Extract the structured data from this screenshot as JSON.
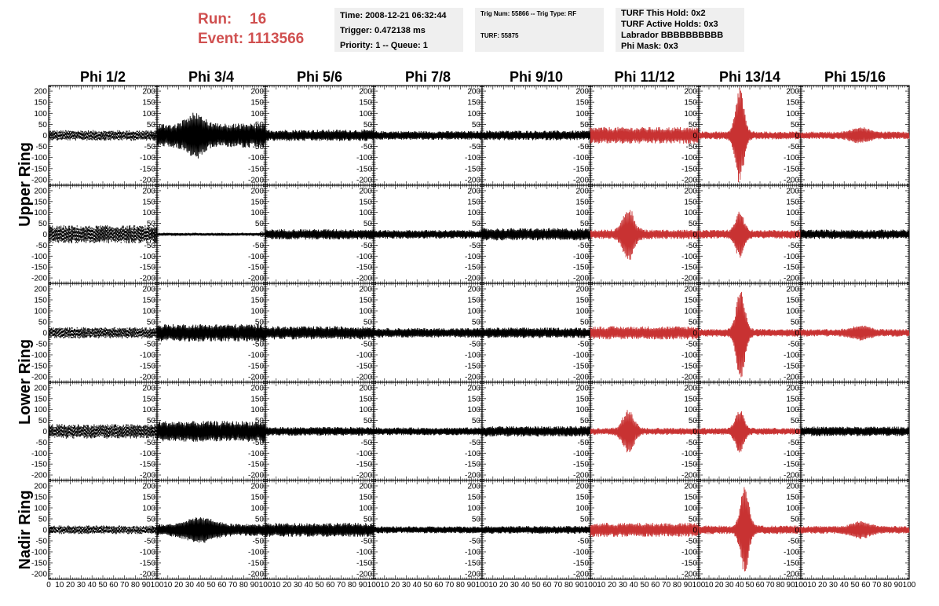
{
  "header": {
    "run_label": "Run:",
    "run_value": "16",
    "event_label": "Event:",
    "event_value": "1113566",
    "time": "Time: 2008-12-21 06:32:44",
    "trigger": "Trigger: 0.472138 ms",
    "priority": "Priority: 1 -- Queue: 1",
    "trig_num": "Trig Num: 55866 -- Trig Type: RF",
    "turf": "TURF: 55875",
    "turf_hold": "TURF This Hold: 0x2",
    "turf_active": "TURF Active Holds: 0x3",
    "labrador": "Labrador BBBBBBBBBB",
    "phi_mask": "Phi Mask: 0x3"
  },
  "chart_data": {
    "type": "line",
    "columns": [
      "Phi 1/2",
      "Phi 3/4",
      "Phi 5/6",
      "Phi 7/8",
      "Phi 9/10",
      "Phi 11/12",
      "Phi 13/14",
      "Phi 15/16"
    ],
    "rings": [
      "Upper Ring",
      "Lower Ring",
      "Nadir Ring"
    ],
    "row_ring": [
      0,
      0,
      1,
      1,
      2
    ],
    "xlim": [
      0,
      100
    ],
    "ylim": [
      -225,
      225
    ],
    "yticks": [
      -200,
      -150,
      -100,
      -50,
      0,
      50,
      100,
      150,
      200
    ],
    "xticks": [
      0,
      10,
      20,
      30,
      40,
      50,
      60,
      70,
      80,
      90,
      100
    ],
    "colors": {
      "normal": "#000000",
      "triggered": "#c83232"
    },
    "panels": [
      [
        {
          "amp": 24,
          "style": "dashed",
          "color": "normal"
        },
        {
          "amp": 55,
          "burst": [
            35,
            7,
            60
          ],
          "color": "normal"
        },
        {
          "amp": 26,
          "color": "normal"
        },
        {
          "amp": 20,
          "color": "normal"
        },
        {
          "amp": 22,
          "color": "normal"
        },
        {
          "amp": 38,
          "color": "triggered"
        },
        {
          "amp": 18,
          "burst": [
            40,
            4,
            205
          ],
          "color": "triggered"
        },
        {
          "amp": 17,
          "burst": [
            55,
            8,
            22
          ],
          "color": "triggered"
        }
      ],
      [
        {
          "amp": 42,
          "style": "dashed",
          "color": "normal"
        },
        {
          "amp": 7,
          "color": "normal"
        },
        {
          "amp": 24,
          "color": "normal"
        },
        {
          "amp": 20,
          "color": "normal"
        },
        {
          "amp": 28,
          "color": "normal"
        },
        {
          "amp": 22,
          "burst": [
            35,
            5,
            110
          ],
          "color": "triggered"
        },
        {
          "amp": 20,
          "burst": [
            40,
            4,
            95
          ],
          "color": "triggered"
        },
        {
          "amp": 22,
          "color": "normal"
        }
      ],
      [
        {
          "amp": 26,
          "style": "dashed",
          "color": "normal"
        },
        {
          "amp": 40,
          "color": "normal"
        },
        {
          "amp": 30,
          "color": "normal"
        },
        {
          "amp": 22,
          "color": "normal"
        },
        {
          "amp": 24,
          "color": "normal"
        },
        {
          "amp": 30,
          "color": "triggered"
        },
        {
          "amp": 18,
          "burst": [
            41,
            4,
            200
          ],
          "color": "triggered"
        },
        {
          "amp": 17,
          "burst": [
            55,
            8,
            20
          ],
          "color": "triggered"
        }
      ],
      [
        {
          "amp": 34,
          "style": "dashed",
          "color": "normal"
        },
        {
          "amp": 48,
          "color": "normal"
        },
        {
          "amp": 20,
          "color": "normal"
        },
        {
          "amp": 18,
          "color": "normal"
        },
        {
          "amp": 24,
          "color": "normal"
        },
        {
          "amp": 16,
          "burst": [
            35,
            5,
            90
          ],
          "color": "triggered"
        },
        {
          "amp": 16,
          "burst": [
            40,
            4,
            90
          ],
          "color": "triggered"
        },
        {
          "amp": 22,
          "color": "normal"
        }
      ],
      [
        {
          "amp": 20,
          "style": "dashed",
          "color": "normal"
        },
        {
          "amp": 28,
          "burst": [
            40,
            12,
            35
          ],
          "color": "normal"
        },
        {
          "amp": 32,
          "color": "normal"
        },
        {
          "amp": 16,
          "color": "normal"
        },
        {
          "amp": 18,
          "color": "normal"
        },
        {
          "amp": 32,
          "color": "triggered"
        },
        {
          "amp": 20,
          "burst": [
            45,
            4,
            185
          ],
          "color": "triggered"
        },
        {
          "amp": 18,
          "burst": [
            55,
            8,
            25
          ],
          "color": "triggered"
        }
      ]
    ]
  }
}
